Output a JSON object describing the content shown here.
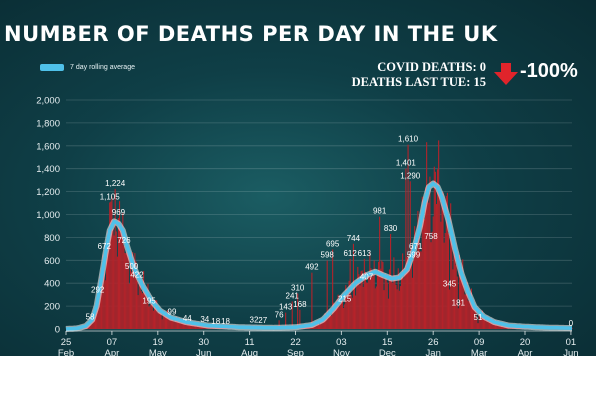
{
  "chart_data": {
    "type": "bar",
    "title": "NUMBER OF DEATHS PER DAY IN THE UK",
    "legend": {
      "label": "7 day rolling average",
      "placement": "top-left"
    },
    "stats": {
      "covid_deaths_label": "COVID DEATHS: 0",
      "last_tue_label": "DEATHS LAST TUE: 15",
      "change": "-100%"
    },
    "ylim": [
      0,
      2000
    ],
    "yticks": [
      "2,000",
      "1,800",
      "1,600",
      "1,400",
      "1,200",
      "1,000",
      "800",
      "600",
      "400",
      "200",
      "0"
    ],
    "ytick_values": [
      2000,
      1800,
      1600,
      1400,
      1200,
      1000,
      800,
      600,
      400,
      200,
      0
    ],
    "x_range_days": [
      0,
      463
    ],
    "xticks": [
      {
        "day": 0,
        "line1": "25",
        "line2": "Feb"
      },
      {
        "day": 42,
        "line1": "07",
        "line2": "Apr"
      },
      {
        "day": 84,
        "line1": "19",
        "line2": "May"
      },
      {
        "day": 126,
        "line1": "30",
        "line2": "Jun"
      },
      {
        "day": 168,
        "line1": "11",
        "line2": "Aug"
      },
      {
        "day": 210,
        "line1": "22",
        "line2": "Sep"
      },
      {
        "day": 252,
        "line1": "03",
        "line2": "Nov"
      },
      {
        "day": 294,
        "line1": "15",
        "line2": "Dec"
      },
      {
        "day": 336,
        "line1": "26",
        "line2": "Jan"
      },
      {
        "day": 378,
        "line1": "09",
        "line2": "Mar"
      },
      {
        "day": 420,
        "line1": "20",
        "line2": "Apr"
      },
      {
        "day": 462,
        "line1": "01",
        "line2": "Jun"
      }
    ],
    "series": [
      {
        "name": "Daily deaths",
        "type": "bar",
        "color": "#c0392b"
      },
      {
        "name": "7 day rolling average",
        "type": "line",
        "color": "#4fc1e9"
      }
    ],
    "avg_points": [
      [
        0,
        0
      ],
      [
        10,
        5
      ],
      [
        18,
        25
      ],
      [
        24,
        80
      ],
      [
        28,
        200
      ],
      [
        32,
        420
      ],
      [
        36,
        650
      ],
      [
        40,
        860
      ],
      [
        44,
        940
      ],
      [
        48,
        920
      ],
      [
        52,
        860
      ],
      [
        56,
        720
      ],
      [
        62,
        540
      ],
      [
        70,
        380
      ],
      [
        78,
        250
      ],
      [
        86,
        160
      ],
      [
        96,
        100
      ],
      [
        110,
        60
      ],
      [
        130,
        30
      ],
      [
        160,
        15
      ],
      [
        190,
        10
      ],
      [
        210,
        15
      ],
      [
        225,
        35
      ],
      [
        235,
        80
      ],
      [
        245,
        180
      ],
      [
        255,
        300
      ],
      [
        265,
        400
      ],
      [
        275,
        470
      ],
      [
        283,
        500
      ],
      [
        290,
        470
      ],
      [
        298,
        440
      ],
      [
        305,
        450
      ],
      [
        312,
        520
      ],
      [
        318,
        680
      ],
      [
        324,
        900
      ],
      [
        328,
        1100
      ],
      [
        332,
        1240
      ],
      [
        336,
        1270
      ],
      [
        340,
        1240
      ],
      [
        344,
        1150
      ],
      [
        350,
        950
      ],
      [
        356,
        700
      ],
      [
        362,
        480
      ],
      [
        368,
        320
      ],
      [
        374,
        190
      ],
      [
        382,
        110
      ],
      [
        392,
        60
      ],
      [
        405,
        30
      ],
      [
        420,
        20
      ],
      [
        440,
        12
      ],
      [
        462,
        8
      ]
    ],
    "data_labels": [
      {
        "day": 22,
        "value": 58,
        "label": "58"
      },
      {
        "day": 29,
        "value": 292,
        "label": "292"
      },
      {
        "day": 35,
        "value": 672,
        "label": "672"
      },
      {
        "day": 40,
        "value": 1105,
        "label": "1,105"
      },
      {
        "day": 45,
        "value": 1224,
        "label": "1,224"
      },
      {
        "day": 48,
        "value": 969,
        "label": "969"
      },
      {
        "day": 53,
        "value": 726,
        "label": "726"
      },
      {
        "day": 60,
        "value": 500,
        "label": "500"
      },
      {
        "day": 65,
        "value": 422,
        "label": "422"
      },
      {
        "day": 76,
        "value": 195,
        "label": "195"
      },
      {
        "day": 97,
        "value": 99,
        "label": "99"
      },
      {
        "day": 111,
        "value": 44,
        "label": "44"
      },
      {
        "day": 127,
        "value": 34,
        "label": "34"
      },
      {
        "day": 137,
        "value": 18,
        "label": "18"
      },
      {
        "day": 146,
        "value": 18,
        "label": "18"
      },
      {
        "day": 172,
        "value": 32,
        "label": "32"
      },
      {
        "day": 180,
        "value": 27,
        "label": "27"
      },
      {
        "day": 195,
        "value": 76,
        "label": "76"
      },
      {
        "day": 201,
        "value": 143,
        "label": "143"
      },
      {
        "day": 207,
        "value": 241,
        "label": "241"
      },
      {
        "day": 212,
        "value": 310,
        "label": "310"
      },
      {
        "day": 214,
        "value": 168,
        "label": "168"
      },
      {
        "day": 225,
        "value": 492,
        "label": "492"
      },
      {
        "day": 239,
        "value": 598,
        "label": "598"
      },
      {
        "day": 244,
        "value": 695,
        "label": "695"
      },
      {
        "day": 255,
        "value": 215,
        "label": "215"
      },
      {
        "day": 260,
        "value": 612,
        "label": "612"
      },
      {
        "day": 263,
        "value": 744,
        "label": "744"
      },
      {
        "day": 273,
        "value": 613,
        "label": "613"
      },
      {
        "day": 275,
        "value": 407,
        "label": "407"
      },
      {
        "day": 287,
        "value": 981,
        "label": "981"
      },
      {
        "day": 297,
        "value": 830,
        "label": "830"
      },
      {
        "day": 313,
        "value": 1610,
        "label": "1,610"
      },
      {
        "day": 311,
        "value": 1401,
        "label": "1,401"
      },
      {
        "day": 315,
        "value": 1290,
        "label": "1,290"
      },
      {
        "day": 320,
        "value": 671,
        "label": "671"
      },
      {
        "day": 318,
        "value": 599,
        "label": "599"
      },
      {
        "day": 334,
        "value": 758,
        "label": "758"
      },
      {
        "day": 351,
        "value": 345,
        "label": "345"
      },
      {
        "day": 359,
        "value": 181,
        "label": "181"
      },
      {
        "day": 377,
        "value": 51,
        "label": "51"
      },
      {
        "day": 462,
        "value": 0,
        "label": "0"
      }
    ]
  }
}
